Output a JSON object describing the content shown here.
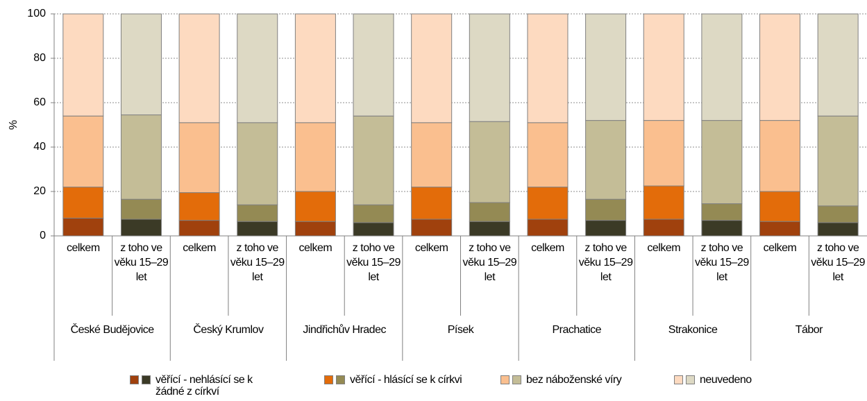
{
  "chart_data": {
    "type": "stacked_bar",
    "y_label": "%",
    "groups": [
      "České Budějovice",
      "Český Krumlov",
      "Jindřichův Hradec",
      "Písek",
      "Prachatice",
      "Strakonice",
      "Tábor"
    ],
    "categories": [
      "celkem",
      "z toho ve věku 15–29 let",
      "celkem",
      "z toho ve věku 15–29 let",
      "celkem",
      "z toho ve věku 15–29 let",
      "celkem",
      "z toho ve věku 15–29 let",
      "celkem",
      "z toho ve věku 15–29 let",
      "celkem",
      "z toho ve věku 15–29 let",
      "celkem",
      "z toho ve věku 15–29 let"
    ],
    "series": [
      {
        "name": "věřící - nehlásící se k žádné z církví",
        "colors": [
          "#a0410d",
          "#3b3a26"
        ],
        "values": [
          8,
          7.5,
          7,
          6.5,
          6.5,
          6,
          7.5,
          6.5,
          7.5,
          7,
          7.5,
          7,
          6.5,
          6
        ]
      },
      {
        "name": "věřící - hlásící se k církvi",
        "colors": [
          "#e36c0a",
          "#948a54"
        ],
        "values": [
          14,
          9,
          12.5,
          7.5,
          13.5,
          8,
          14.5,
          8.5,
          14.5,
          9.5,
          15,
          7.5,
          13.5,
          7.5
        ]
      },
      {
        "name": "bez náboženské víry",
        "colors": [
          "#fabf8f",
          "#c4bd97"
        ],
        "values": [
          32,
          38,
          31.5,
          37,
          31,
          40,
          29,
          36.5,
          29,
          35.5,
          29.5,
          37.5,
          32,
          40.5
        ]
      },
      {
        "name": "neuvedeno",
        "colors": [
          "#fddac0",
          "#ddd9c4"
        ],
        "values": [
          46,
          45.5,
          49,
          49,
          49,
          46,
          49,
          48.5,
          49,
          48,
          48,
          48,
          48,
          46
        ]
      }
    ],
    "ylim": [
      0,
      100
    ],
    "yticks": [
      0,
      20,
      40,
      60,
      80,
      100
    ],
    "grid": true
  }
}
